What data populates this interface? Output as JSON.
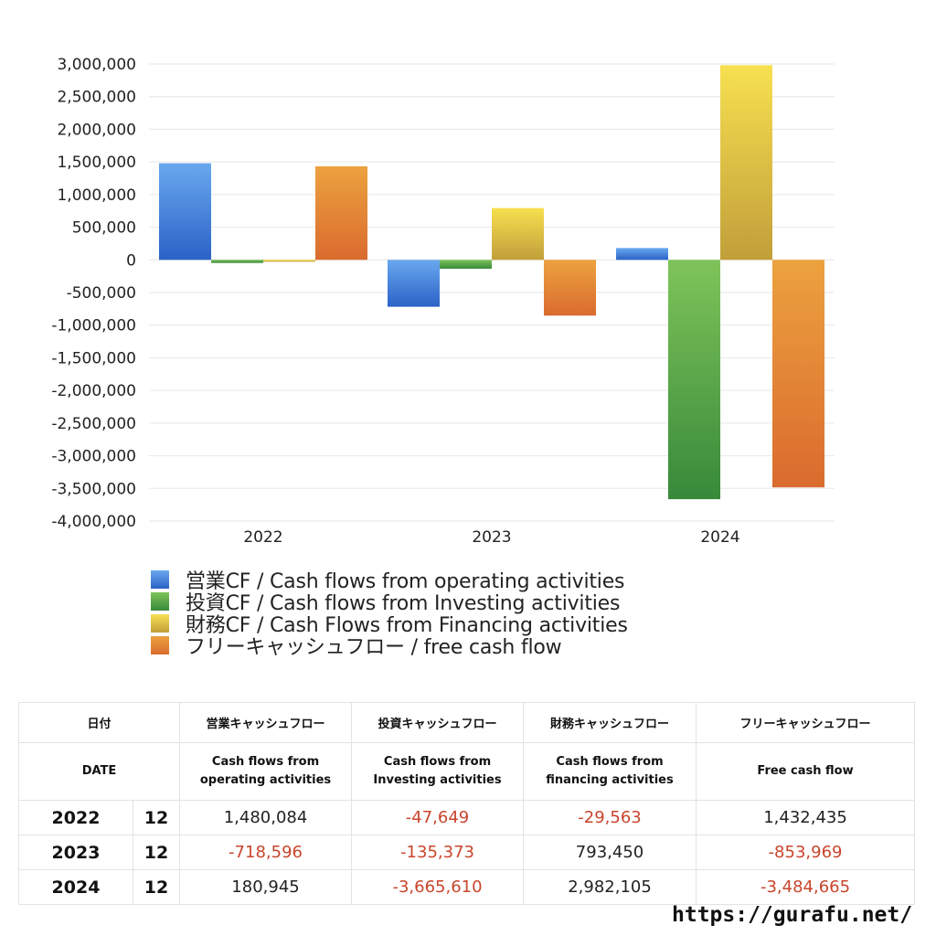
{
  "chart_data": {
    "type": "bar",
    "categories": [
      "2022",
      "2023",
      "2024"
    ],
    "series": [
      {
        "name": "営業CF / Cash flows from operating activities",
        "values": [
          1480084,
          -718596,
          180945
        ],
        "color_top": "#6aa8ef",
        "color_bottom": "#2a62c6"
      },
      {
        "name": "投資CF / Cash flows from Investing activities",
        "values": [
          -47649,
          -135373,
          -3665610
        ],
        "color_top": "#7fc45a",
        "color_bottom": "#37893a"
      },
      {
        "name": "財務CF / Cash Flows from Financing activities",
        "values": [
          -29563,
          793450,
          2982105
        ],
        "color_top": "#f7e050",
        "color_bottom": "#c19f3a"
      },
      {
        "name": "フリーキャッシュフロー / free cash flow",
        "values": [
          1432435,
          -853969,
          -3484665
        ],
        "color_top": "#eca23f",
        "color_bottom": "#da6b2e"
      }
    ],
    "y_ticks": [
      "3,000,000",
      "2,500,000",
      "2,000,000",
      "1,500,000",
      "1,000,000",
      "500,000",
      "0",
      "-500,000",
      "-1,000,000",
      "-1,500,000",
      "-2,000,000",
      "-2,500,000",
      "-3,000,000",
      "-3,500,000",
      "-4,000,000"
    ],
    "ylim": [
      -4000000,
      3000000
    ],
    "grid": true,
    "legend_position": "bottom-left"
  },
  "table": {
    "headers_ja": [
      "日付",
      "営業キャッシュフロー",
      "投資キャッシュフロー",
      "財務キャッシュフロー",
      "フリーキャッシュフロー"
    ],
    "headers_en": [
      "DATE",
      "Cash flows from\noperating activities",
      "Cash flows from\nInvesting activities",
      "Cash flows from\nfinancing activities",
      "Free cash flow"
    ],
    "rows": [
      {
        "year": "2022",
        "month": "12",
        "cells": [
          {
            "text": "1,480,084",
            "negative": false
          },
          {
            "text": "-47,649",
            "negative": true
          },
          {
            "text": "-29,563",
            "negative": true
          },
          {
            "text": "1,432,435",
            "negative": false
          }
        ]
      },
      {
        "year": "2023",
        "month": "12",
        "cells": [
          {
            "text": "-718,596",
            "negative": true
          },
          {
            "text": "-135,373",
            "negative": true
          },
          {
            "text": "793,450",
            "negative": false
          },
          {
            "text": "-853,969",
            "negative": true
          }
        ]
      },
      {
        "year": "2024",
        "month": "12",
        "cells": [
          {
            "text": "180,945",
            "negative": false
          },
          {
            "text": "-3,665,610",
            "negative": true
          },
          {
            "text": "2,982,105",
            "negative": false
          },
          {
            "text": "-3,484,665",
            "negative": true
          }
        ]
      }
    ]
  },
  "footer": {
    "url": "https://gurafu.net/"
  }
}
